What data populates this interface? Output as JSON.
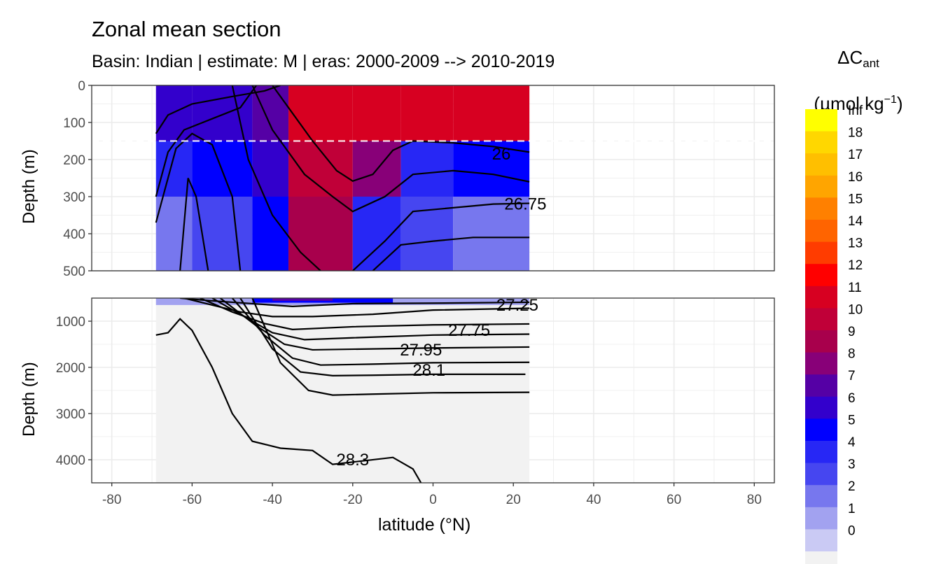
{
  "title": "Zonal mean section",
  "subtitle": "Basin: Indian | estimate: M  | eras: 2000-2009 --> 2010-2019",
  "chart_data": [
    {
      "type": "heatmap",
      "panel": "upper",
      "ylabel": "Depth (m)",
      "ylim": [
        500,
        0
      ],
      "yticks": [
        0,
        100,
        200,
        300,
        400,
        500
      ],
      "xlim": [
        -85,
        85
      ],
      "reference_line_depth": 150,
      "isopycnal_labels": [
        {
          "label": "26",
          "lat": 17,
          "depth": 185
        },
        {
          "label": "26.75",
          "lat": 23,
          "depth": 320
        }
      ],
      "bands": [
        {
          "lat": [
            -69,
            -60
          ],
          "values": [
            6,
            4,
            2
          ]
        },
        {
          "lat": [
            -60,
            -45
          ],
          "values": [
            6,
            5,
            3
          ]
        },
        {
          "lat": [
            -45,
            -36
          ],
          "values": [
            7,
            6,
            5
          ]
        },
        {
          "lat": [
            -36,
            -20
          ],
          "values": [
            11,
            10,
            9
          ]
        },
        {
          "lat": [
            -20,
            -8
          ],
          "values": [
            11,
            8,
            4
          ]
        },
        {
          "lat": [
            -8,
            5
          ],
          "values": [
            11,
            4,
            3
          ]
        },
        {
          "lat": [
            5,
            24
          ],
          "values": [
            11,
            5,
            2
          ]
        }
      ]
    },
    {
      "type": "heatmap",
      "panel": "lower",
      "ylabel": "Depth (m)",
      "ylim": [
        4500,
        500
      ],
      "yticks": [
        1000,
        2000,
        3000,
        4000
      ],
      "xlabel": "latitude (°N)",
      "xticks": [
        -80,
        -60,
        -40,
        -20,
        0,
        20,
        40,
        60,
        80
      ],
      "xlim": [
        -85,
        85
      ],
      "isopycnal_labels": [
        {
          "label": "27.25",
          "lat": 21,
          "depth": 650
        },
        {
          "label": "27.75",
          "lat": 9,
          "depth": 1200
        },
        {
          "label": "27.95",
          "lat": -3,
          "depth": 1620
        },
        {
          "label": "28.1",
          "lat": -1,
          "depth": 2060
        },
        {
          "label": "28.3",
          "lat": -20,
          "depth": 4000
        }
      ]
    }
  ],
  "legend": {
    "title_main": "ΔC",
    "title_sub": "ant",
    "unit_left": "(µmol kg",
    "unit_sup": "−1",
    "unit_right": ")",
    "labels": [
      "Inf",
      "18",
      "17",
      "16",
      "15",
      "14",
      "13",
      "12",
      "11",
      "10",
      "9",
      "8",
      "7",
      "6",
      "5",
      "4",
      "3",
      "2",
      "1",
      "0"
    ],
    "colors": [
      "#ffff00",
      "#ffd700",
      "#ffbf00",
      "#ffa500",
      "#ff8000",
      "#ff6400",
      "#ff3c00",
      "#ff0000",
      "#d70021",
      "#c00038",
      "#a8004c",
      "#880078",
      "#5500a5",
      "#3300cc",
      "#0000ff",
      "#2727f5",
      "#4646f0",
      "#7777ee",
      "#a2a2f0",
      "#cacaf4",
      "#f2f2f2"
    ]
  }
}
